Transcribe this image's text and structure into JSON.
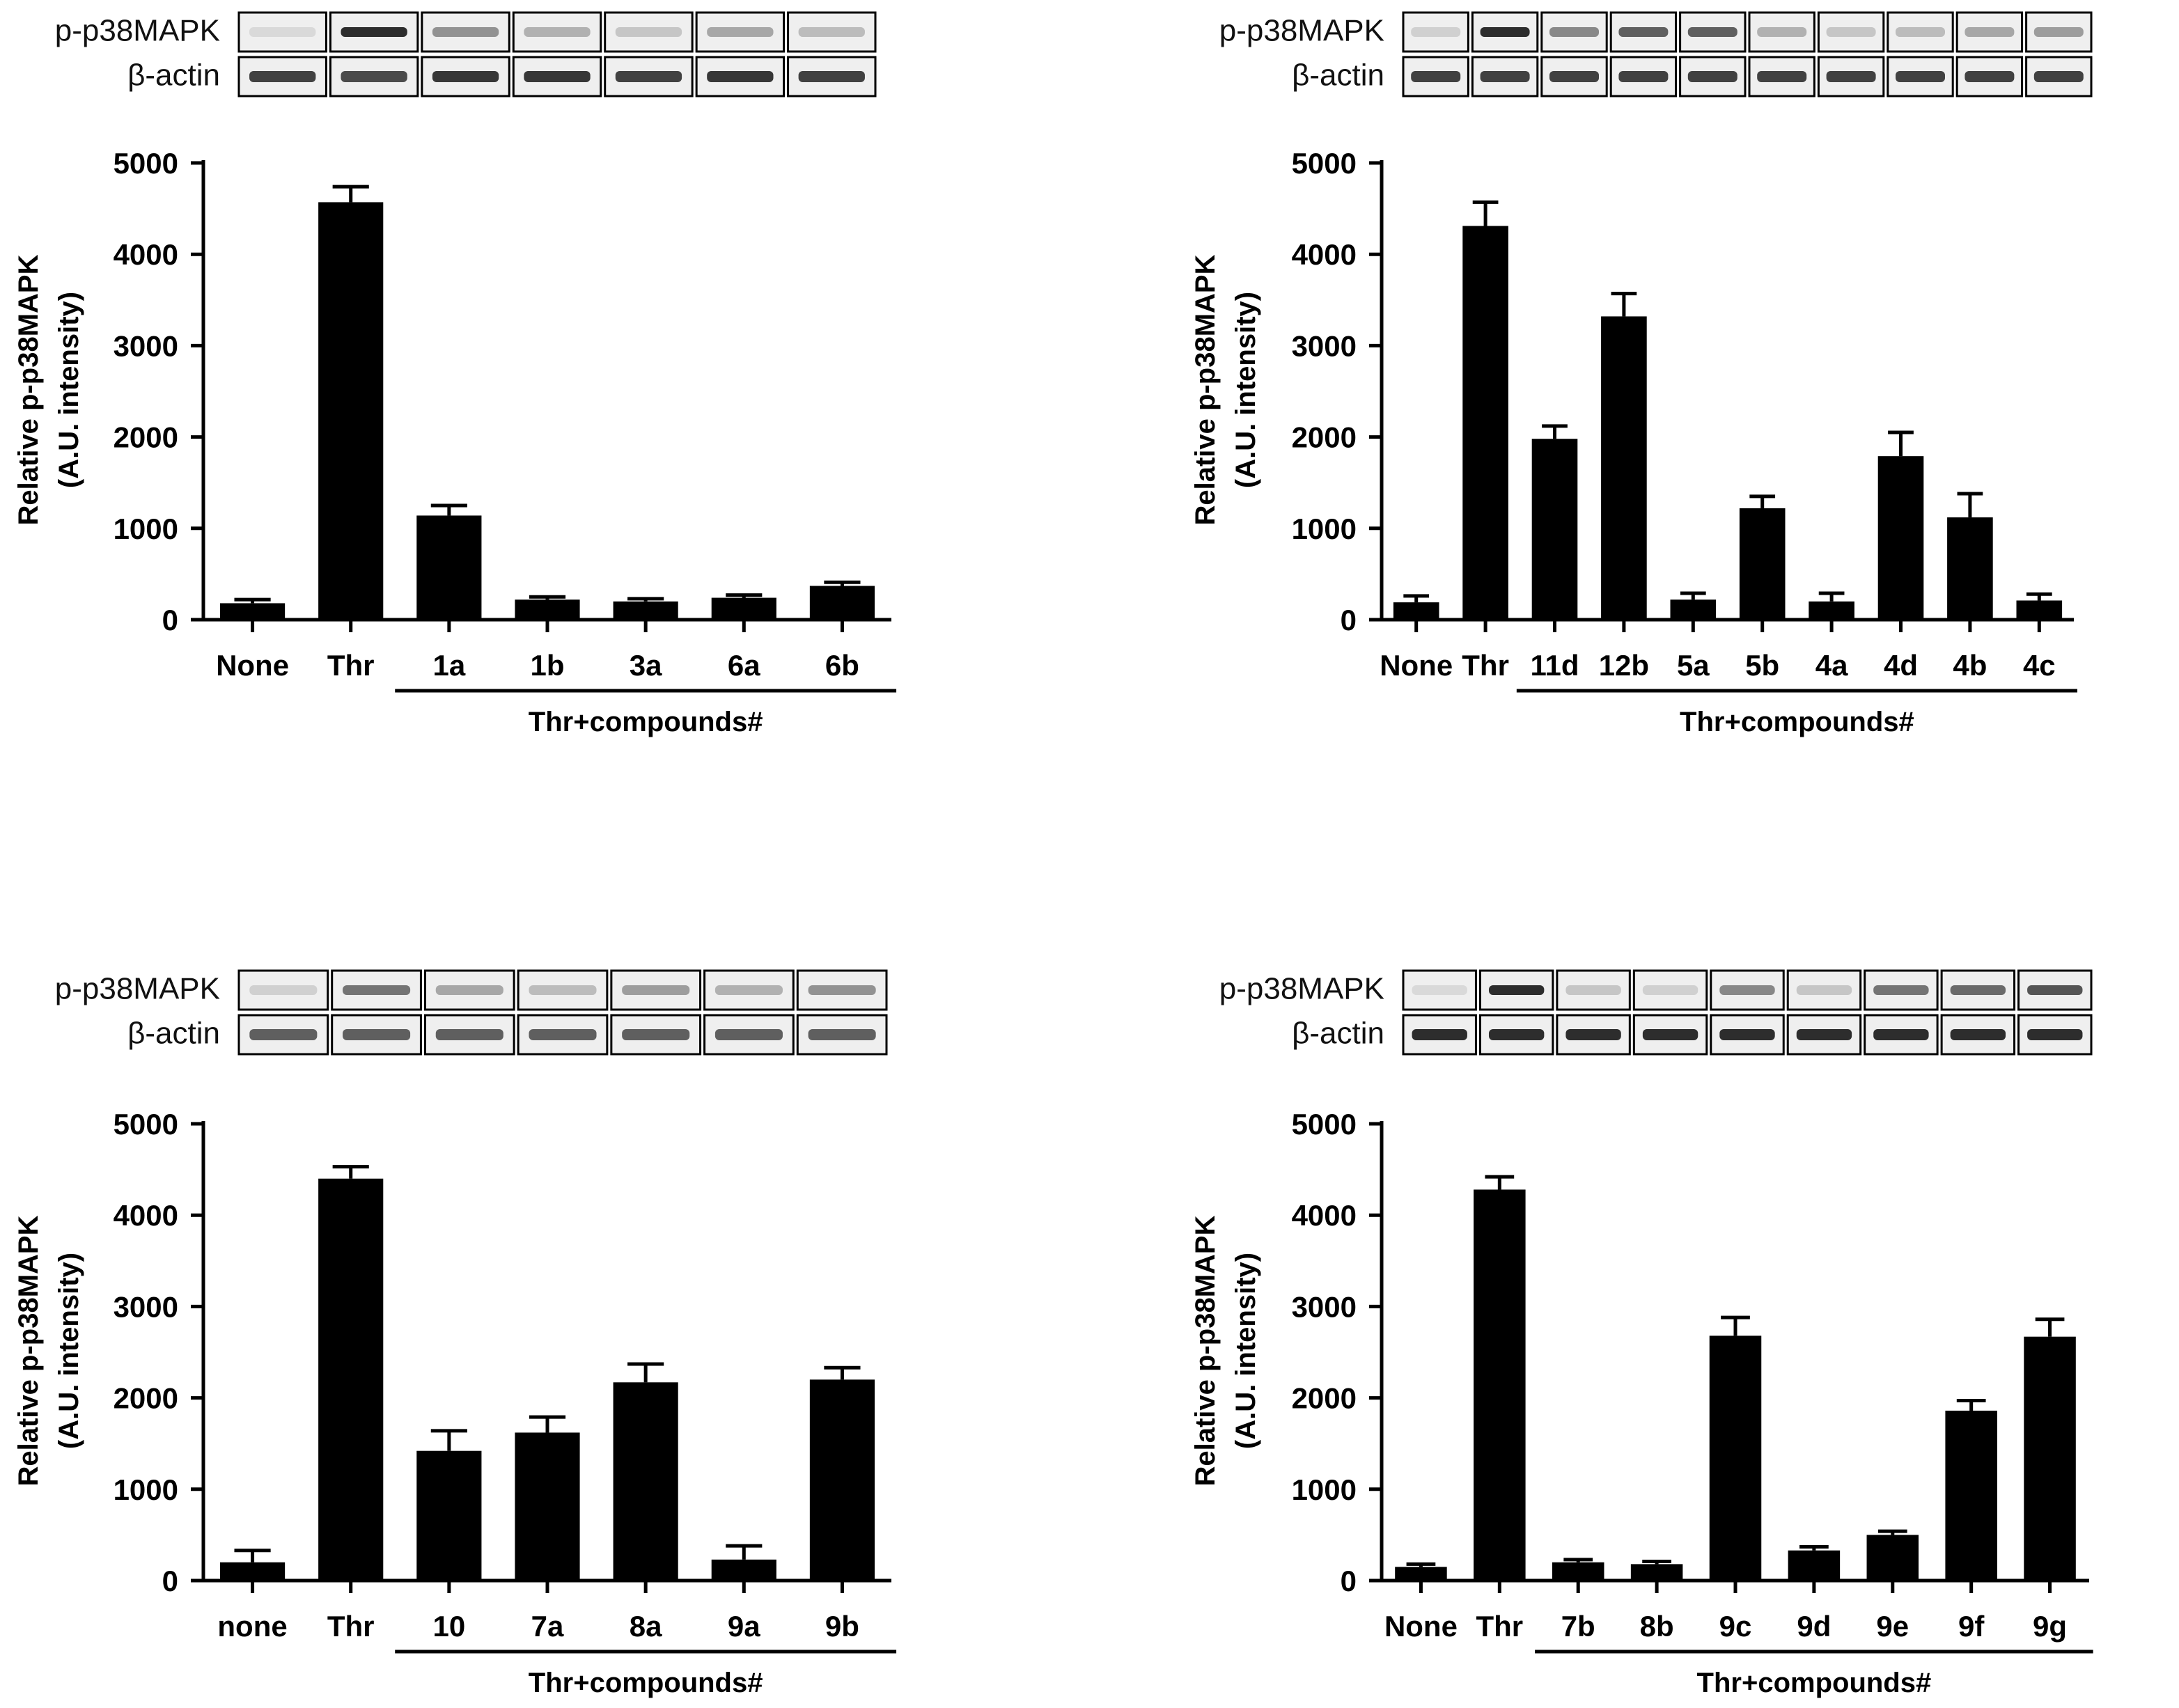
{
  "colors": {
    "bar": "#000000",
    "axis": "#000000",
    "blot_bg": "#efefef",
    "band": "#222222"
  },
  "chart_data": [
    {
      "type": "bar",
      "title": "",
      "ylabel_line1": "Relative p-p38MAPK",
      "ylabel_line2": "(A.U. intensity)",
      "ylim": [
        0,
        5000
      ],
      "yticks": [
        0,
        1000,
        2000,
        3000,
        4000,
        5000
      ],
      "categories": [
        "None",
        "Thr",
        "1a",
        "1b",
        "3a",
        "6a",
        "6b"
      ],
      "values": [
        180,
        4570,
        1140,
        220,
        200,
        240,
        370
      ],
      "errors": [
        40,
        170,
        110,
        30,
        30,
        30,
        40
      ],
      "group_label": "Thr+compounds#",
      "group_start_index": 2,
      "blot_row1_label": "p-p38MAPK",
      "blot_row2_label": "β-actin",
      "band_intensity_row1": [
        0.1,
        0.95,
        0.45,
        0.3,
        0.2,
        0.35,
        0.25
      ],
      "band_intensity_row2": [
        0.85,
        0.8,
        0.9,
        0.9,
        0.85,
        0.9,
        0.85
      ]
    },
    {
      "type": "bar",
      "title": "",
      "ylabel_line1": "Relative p-p38MAPK",
      "ylabel_line2": "(A.U. intensity)",
      "ylim": [
        0,
        5000
      ],
      "yticks": [
        0,
        1000,
        2000,
        3000,
        4000,
        5000
      ],
      "categories": [
        "None",
        "Thr",
        "11d",
        "12b",
        "5a",
        "5b",
        "4a",
        "4d",
        "4b",
        "4c"
      ],
      "values": [
        190,
        4310,
        1980,
        3320,
        220,
        1220,
        200,
        1790,
        1120,
        210
      ],
      "errors": [
        70,
        260,
        140,
        250,
        70,
        130,
        90,
        260,
        260,
        70
      ],
      "group_label": "Thr+compounds#",
      "group_start_index": 2,
      "blot_row1_label": "p-p38MAPK",
      "blot_row2_label": "β-actin",
      "band_intensity_row1": [
        0.15,
        0.95,
        0.5,
        0.7,
        0.7,
        0.3,
        0.2,
        0.25,
        0.35,
        0.4
      ],
      "band_intensity_row2": [
        0.85,
        0.85,
        0.85,
        0.85,
        0.85,
        0.85,
        0.85,
        0.85,
        0.85,
        0.85
      ]
    },
    {
      "type": "bar",
      "title": "",
      "ylabel_line1": "Relative p-p38MAPK",
      "ylabel_line2": "(A.U. intensity)",
      "ylim": [
        0,
        5000
      ],
      "yticks": [
        0,
        1000,
        2000,
        3000,
        4000,
        5000
      ],
      "categories": [
        "none",
        "Thr",
        "10",
        "7a",
        "8a",
        "9a",
        "9b"
      ],
      "values": [
        200,
        4400,
        1420,
        1620,
        2170,
        230,
        2200
      ],
      "errors": [
        130,
        130,
        220,
        170,
        200,
        150,
        130
      ],
      "group_label": "Thr+compounds#",
      "group_start_index": 2,
      "blot_row1_label": "p-p38MAPK",
      "blot_row2_label": "β-actin",
      "band_intensity_row1": [
        0.15,
        0.6,
        0.35,
        0.25,
        0.4,
        0.3,
        0.45
      ],
      "band_intensity_row2": [
        0.7,
        0.7,
        0.7,
        0.7,
        0.7,
        0.7,
        0.7
      ]
    },
    {
      "type": "bar",
      "title": "",
      "ylabel_line1": "Relative p-p38MAPK",
      "ylabel_line2": "(A.U. intensity)",
      "ylim": [
        0,
        5000
      ],
      "yticks": [
        0,
        1000,
        2000,
        3000,
        4000,
        5000
      ],
      "categories": [
        "None",
        "Thr",
        "7b",
        "8b",
        "9c",
        "9d",
        "9e",
        "9f",
        "9g"
      ],
      "values": [
        150,
        4280,
        200,
        180,
        2680,
        330,
        500,
        1860,
        2670
      ],
      "errors": [
        30,
        140,
        30,
        30,
        200,
        40,
        40,
        110,
        190
      ],
      "group_label": "Thr+compounds#",
      "group_start_index": 2,
      "blot_row1_label": "p-p38MAPK",
      "blot_row2_label": "β-actin",
      "band_intensity_row1": [
        0.1,
        0.95,
        0.2,
        0.15,
        0.5,
        0.2,
        0.6,
        0.65,
        0.75
      ],
      "band_intensity_row2": [
        0.95,
        0.95,
        0.95,
        0.95,
        0.95,
        0.95,
        0.95,
        0.95,
        0.95
      ]
    }
  ]
}
